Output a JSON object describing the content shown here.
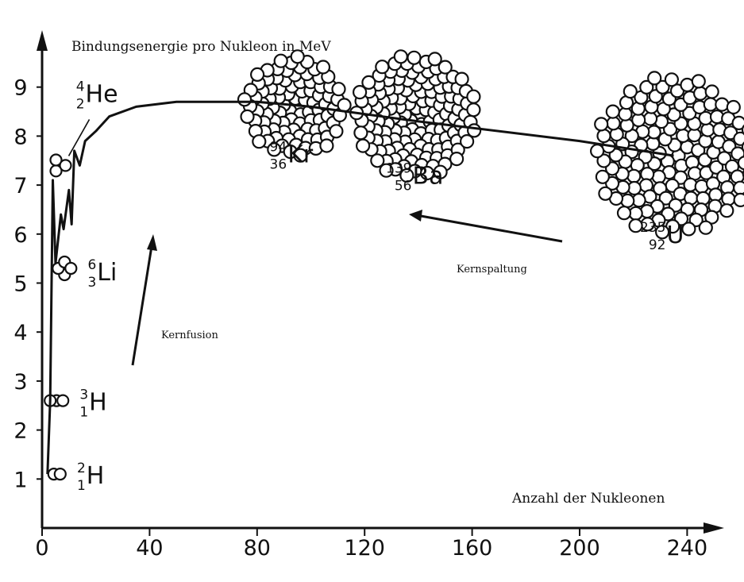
{
  "chart_data": {
    "type": "line",
    "ylabel": "Bindungsenergie pro Nukleon in MeV",
    "xlabel": "Anzahl der Nukleonen",
    "xlim": [
      0,
      250
    ],
    "ylim": [
      0,
      9.9
    ],
    "x_ticks": [
      0,
      40,
      80,
      120,
      160,
      200,
      240
    ],
    "y_ticks": [
      1,
      2,
      3,
      4,
      5,
      6,
      7,
      8,
      9
    ],
    "grid": false,
    "curve": [
      {
        "x": 2,
        "y": 1.1
      },
      {
        "x": 3,
        "y": 2.6
      },
      {
        "x": 4,
        "y": 7.1
      },
      {
        "x": 5,
        "y": 5.4
      },
      {
        "x": 7,
        "y": 6.4
      },
      {
        "x": 8,
        "y": 6.1
      },
      {
        "x": 10,
        "y": 6.9
      },
      {
        "x": 11,
        "y": 6.2
      },
      {
        "x": 12,
        "y": 7.7
      },
      {
        "x": 14,
        "y": 7.4
      },
      {
        "x": 16,
        "y": 7.9
      },
      {
        "x": 20,
        "y": 8.1
      },
      {
        "x": 25,
        "y": 8.4
      },
      {
        "x": 35,
        "y": 8.6
      },
      {
        "x": 50,
        "y": 8.7
      },
      {
        "x": 60,
        "y": 8.7
      },
      {
        "x": 80,
        "y": 8.7
      },
      {
        "x": 100,
        "y": 8.6
      },
      {
        "x": 140,
        "y": 8.3
      },
      {
        "x": 200,
        "y": 7.9
      },
      {
        "x": 235,
        "y": 7.6
      }
    ],
    "nuclides": [
      {
        "symbol": "H",
        "mass": "2",
        "charge": "1",
        "x": 2,
        "y": 1.1
      },
      {
        "symbol": "H",
        "mass": "3",
        "charge": "1",
        "x": 3,
        "y": 2.6
      },
      {
        "symbol": "Li",
        "mass": "6",
        "charge": "3",
        "x": 6,
        "y": 5.3
      },
      {
        "symbol": "He",
        "mass": "4",
        "charge": "2",
        "x": 4,
        "y": 7.4
      },
      {
        "symbol": "Kr",
        "mass": "94",
        "charge": "36",
        "x": 94,
        "y": 8.6
      },
      {
        "symbol": "Ba",
        "mass": "139",
        "charge": "56",
        "x": 139,
        "y": 8.4
      },
      {
        "symbol": "U",
        "mass": "235",
        "charge": "92",
        "x": 235,
        "y": 7.6
      }
    ],
    "annotations": [
      {
        "text": "Kernfusion"
      },
      {
        "text": "Kernspaltung"
      }
    ]
  }
}
